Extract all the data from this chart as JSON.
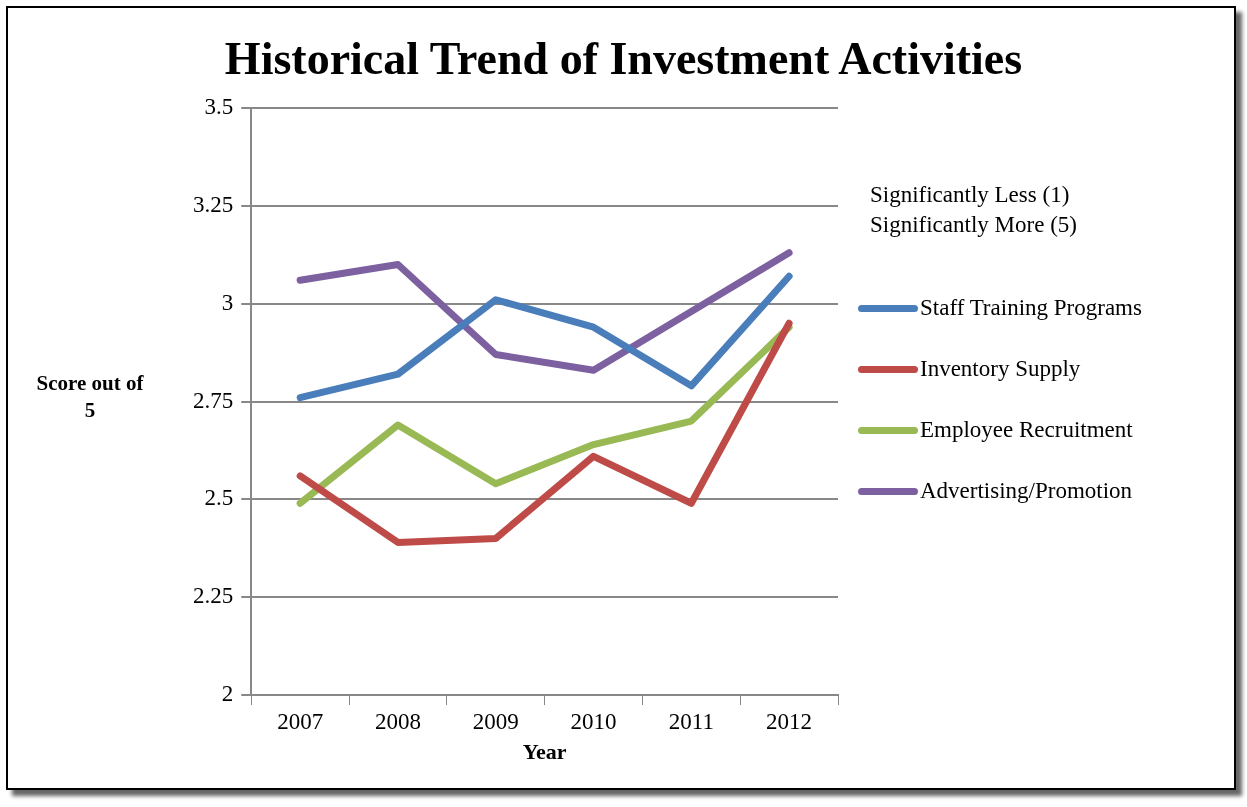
{
  "chart_data": {
    "type": "line",
    "title": "Historical Trend of Investment Activities",
    "xlabel": "Year",
    "ylabel": "Score out of 5",
    "legend_title": "Significantly Less (1)\nSignificantly More (5)",
    "categories": [
      "2007",
      "2008",
      "2009",
      "2010",
      "2011",
      "2012"
    ],
    "series": [
      {
        "name": "Staff Training Programs",
        "color": "#4a7ebb",
        "values": [
          2.76,
          2.82,
          3.01,
          2.94,
          2.79,
          3.07
        ]
      },
      {
        "name": "Inventory Supply",
        "color": "#be4b48",
        "values": [
          2.56,
          2.39,
          2.4,
          2.61,
          2.49,
          2.95
        ]
      },
      {
        "name": "Employee Recruitment",
        "color": "#98b954",
        "values": [
          2.49,
          2.69,
          2.54,
          2.64,
          2.7,
          2.94
        ]
      },
      {
        "name": "Advertising/Promotion",
        "color": "#7d60a0",
        "values": [
          3.06,
          3.1,
          2.87,
          2.83,
          2.98,
          3.13
        ]
      }
    ],
    "ylim": [
      2,
      3.5
    ],
    "yticks": [
      2,
      2.25,
      2.5,
      2.75,
      3,
      3.25,
      3.5
    ],
    "grid": "y",
    "legend": "right",
    "marker": "none",
    "line_style": "solid"
  }
}
